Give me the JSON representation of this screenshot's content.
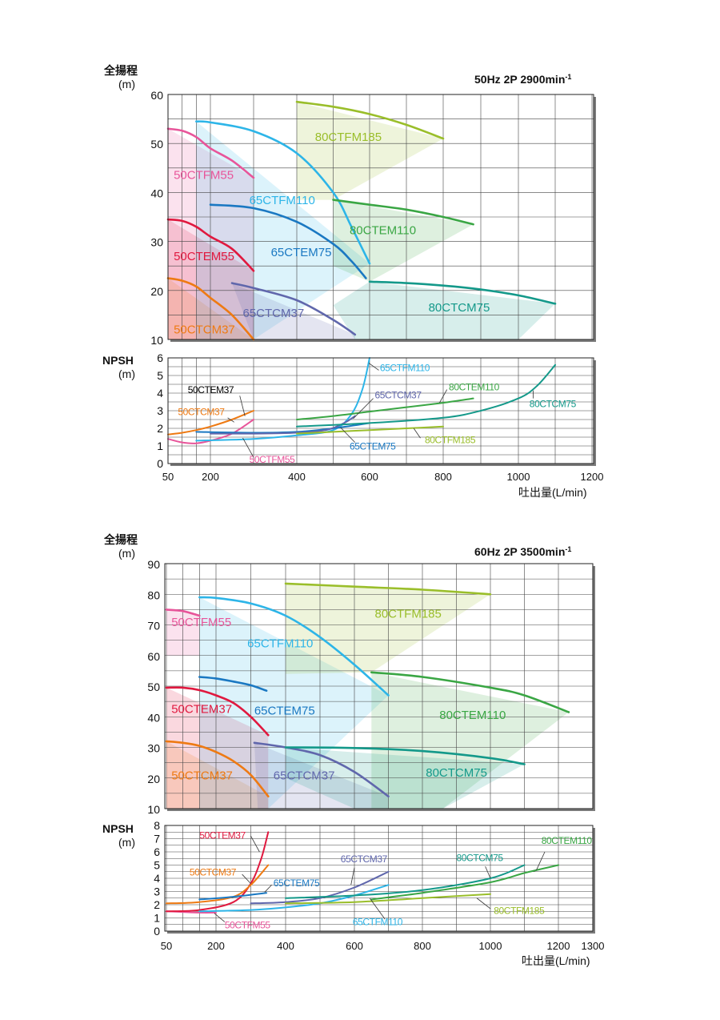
{
  "chart_data": [
    {
      "type": "line",
      "title": "50Hz 2P 2900min-1",
      "title_main": "50Hz 2P 2900min",
      "title_sup": "-1",
      "ylabel": "全揚程",
      "yunit": "(m)",
      "xlabel": "吐出量(L/min)",
      "xlim": [
        50,
        1200
      ],
      "x_ticks": [
        50,
        200,
        400,
        600,
        800,
        1000,
        1200
      ],
      "ylim": [
        10,
        60
      ],
      "y_ticks": [
        10,
        20,
        30,
        40,
        50,
        60
      ],
      "colors": {
        "50CTFM55": "#e8559a",
        "50CTEM55": "#e0193f",
        "50CTCM37": "#ee7a13",
        "65CTFM110": "#2db5e8",
        "65CTEM75": "#1a78c2",
        "65CTCM37": "#6067ac",
        "80CTFM185": "#9abe2a",
        "80CTEM110": "#3aa644",
        "80CTCM75": "#14998a"
      },
      "series": [
        {
          "name": "50CTFM55",
          "label": "50CTFM55",
          "x": [
            50,
            100,
            150,
            200,
            250,
            300
          ],
          "y": [
            53,
            52.6,
            51.3,
            49,
            46.5,
            43
          ]
        },
        {
          "name": "50CTEM55",
          "label": "50CTEM55",
          "x": [
            50,
            100,
            150,
            200,
            250,
            300
          ],
          "y": [
            34.5,
            34.2,
            33,
            31,
            28.5,
            24
          ]
        },
        {
          "name": "50CTCM37",
          "label": "50CTCM37",
          "x": [
            50,
            100,
            150,
            200,
            250,
            300
          ],
          "y": [
            22.5,
            22,
            20.8,
            18.5,
            15,
            10
          ]
        },
        {
          "name": "65CTFM110",
          "label": "65CTFM110",
          "x": [
            150,
            200,
            300,
            400,
            500,
            550,
            600
          ],
          "y": [
            54.5,
            54.3,
            52.5,
            48,
            40,
            33,
            25.5
          ]
        },
        {
          "name": "65CTEM75",
          "label": "65CTEM75",
          "x": [
            200,
            300,
            400,
            500,
            550,
            590
          ],
          "y": [
            37.5,
            36.8,
            34,
            29.5,
            26,
            22.5
          ]
        },
        {
          "name": "65CTCM37",
          "label": "65CTCM37",
          "x": [
            250,
            300,
            400,
            500,
            560
          ],
          "y": [
            21.5,
            20.5,
            18,
            14,
            11
          ]
        },
        {
          "name": "80CTFM185",
          "label": "80CTFM185",
          "x": [
            400,
            500,
            600,
            700,
            800
          ],
          "y": [
            58.5,
            57.5,
            56,
            53.8,
            51
          ]
        },
        {
          "name": "80CTEM110",
          "label": "80CTEM110",
          "x": [
            500,
            600,
            700,
            800,
            880
          ],
          "y": [
            38.5,
            37.5,
            36.5,
            35,
            33.5
          ]
        },
        {
          "name": "80CTCM75",
          "label": "80CTCM75",
          "x": [
            600,
            700,
            800,
            900,
            1000,
            1100
          ],
          "y": [
            21.8,
            21.5,
            21,
            20.2,
            19,
            17.3
          ]
        }
      ],
      "npsh": {
        "ylabel": "NPSH",
        "yunit": "(m)",
        "ylim": [
          0,
          6
        ],
        "y_ticks": [
          0,
          1,
          2,
          3,
          4,
          5,
          6
        ],
        "series": [
          {
            "name": "50CTFM55",
            "label": "50CTFM55",
            "x": [
              50,
              100,
              150,
              200,
              250,
              300
            ],
            "y": [
              1.4,
              1.2,
              1.15,
              1.3,
              1.7,
              2.5
            ]
          },
          {
            "name": "50CTEM37",
            "label": "50CTEM37",
            "x": [
              50,
              100,
              150,
              200,
              250,
              300
            ],
            "y": [
              1.5,
              1.3,
              1.25,
              1.5,
              2.2,
              3.5
            ]
          },
          {
            "name": "50CTCM37",
            "label": "50CTCM37",
            "x": [
              50,
              100,
              150,
              200,
              250,
              300
            ],
            "y": [
              1.65,
              1.75,
              1.9,
              2.1,
              2.5,
              3
            ]
          },
          {
            "name": "65CTFM110",
            "label": "65CTFM110",
            "x": [
              150,
              300,
              400,
              500,
              550,
              580,
              600
            ],
            "y": [
              1.3,
              1.4,
              1.6,
              1.9,
              2.8,
              4.2,
              6
            ]
          },
          {
            "name": "65CTEM75",
            "label": "65CTEM75",
            "x": [
              150,
              300,
              400,
              500,
              600
            ],
            "y": [
              1.8,
              1.75,
              1.8,
              2,
              2.3
            ]
          },
          {
            "name": "65CTCM37",
            "label": "65CTCM37",
            "x": [
              200,
              300,
              400,
              480,
              530,
              560
            ],
            "y": [
              1.7,
              1.7,
              1.75,
              1.9,
              2.3,
              2.7
            ]
          },
          {
            "name": "80CTFM185",
            "label": "80CTFM185",
            "x": [
              400,
              500,
              600,
              700,
              800
            ],
            "y": [
              1.7,
              1.8,
              1.9,
              2,
              2.1
            ]
          },
          {
            "name": "80CTEM110",
            "label": "80CTEM110",
            "x": [
              400,
              500,
              600,
              700,
              800,
              880
            ],
            "y": [
              2.5,
              2.7,
              2.95,
              3.2,
              3.45,
              3.7
            ]
          },
          {
            "name": "80CTCM75",
            "label": "80CTCM75",
            "x": [
              400,
              600,
              800,
              900,
              1000,
              1050,
              1100
            ],
            "y": [
              2.1,
              2.3,
              2.6,
              3,
              3.7,
              4.4,
              5.6
            ]
          }
        ]
      }
    },
    {
      "type": "line",
      "title": "60Hz 2P 3500min-1",
      "title_main": "60Hz 2P 3500min",
      "title_sup": "-1",
      "ylabel": "全揚程",
      "yunit": "(m)",
      "xlabel": "吐出量(L/min)",
      "xlim": [
        50,
        1300
      ],
      "x_ticks": [
        50,
        200,
        400,
        600,
        800,
        1000,
        1200,
        1300
      ],
      "ylim": [
        10,
        90
      ],
      "y_ticks": [
        10,
        20,
        30,
        40,
        50,
        60,
        70,
        80,
        90
      ],
      "colors": {
        "50CTFM55": "#e8559a",
        "50CTEM37": "#e0193f",
        "50CTCM37": "#ee7a13",
        "65CTFM110": "#2db5e8",
        "65CTEM75": "#1a78c2",
        "65CTCM37": "#6067ac",
        "80CTFM185": "#9abe2a",
        "80CTEM110": "#3aa644",
        "80CTCM75": "#14998a"
      },
      "series": [
        {
          "name": "50CTFM55",
          "label": "50CTFM55",
          "x": [
            50,
            100,
            150
          ],
          "y": [
            75,
            74.5,
            73
          ]
        },
        {
          "name": "50CTEM37",
          "label": "50CTEM37",
          "x": [
            50,
            100,
            150,
            200,
            250,
            300,
            350
          ],
          "y": [
            49.5,
            49.5,
            48.7,
            47,
            44.5,
            40,
            34
          ]
        },
        {
          "name": "50CTCM37",
          "label": "50CTCM37",
          "x": [
            50,
            100,
            150,
            200,
            250,
            300,
            350
          ],
          "y": [
            32,
            31.5,
            30.5,
            28.5,
            25.5,
            21,
            14
          ]
        },
        {
          "name": "65CTFM110",
          "label": "65CTFM110",
          "x": [
            150,
            200,
            300,
            400,
            500,
            600,
            700
          ],
          "y": [
            79,
            78.8,
            77,
            73,
            66,
            57,
            47
          ]
        },
        {
          "name": "65CTEM75",
          "label": "65CTEM75",
          "x": [
            150,
            200,
            250,
            300,
            345
          ],
          "y": [
            53,
            52.5,
            51.5,
            50.3,
            48.5
          ]
        },
        {
          "name": "65CTCM37",
          "label": "65CTCM37",
          "x": [
            310,
            400,
            500,
            600,
            700
          ],
          "y": [
            31.5,
            30,
            27.5,
            22,
            14
          ]
        },
        {
          "name": "80CTFM185",
          "label": "80CTFM185",
          "x": [
            400,
            600,
            800,
            1000
          ],
          "y": [
            83.5,
            82.5,
            81.5,
            80
          ]
        },
        {
          "name": "80CTEM110",
          "label": "80CTEM110",
          "x": [
            650,
            800,
            1000,
            1100,
            1230
          ],
          "y": [
            54.5,
            53,
            49.5,
            47,
            41.5
          ]
        },
        {
          "name": "80CTCM75",
          "label": "80CTCM75",
          "x": [
            400,
            600,
            800,
            1000,
            1100
          ],
          "y": [
            30,
            29.8,
            28.8,
            26.5,
            24.5
          ]
        }
      ],
      "npsh": {
        "ylabel": "NPSH",
        "yunit": "(m)",
        "ylim": [
          0,
          8
        ],
        "y_ticks": [
          0,
          1,
          2,
          3,
          4,
          5,
          6,
          7,
          8
        ],
        "series": [
          {
            "name": "50CTFM55",
            "label": "50CTFM55",
            "x": [
              50,
              100,
              150,
              200
            ],
            "y": [
              1.5,
              1.45,
              1.4,
              1.4
            ]
          },
          {
            "name": "50CTEM37",
            "label": "50CTEM37",
            "x": [
              50,
              150,
              250,
              300,
              330,
              350
            ],
            "y": [
              1.5,
              1.6,
              2.2,
              3.6,
              5.5,
              7.5
            ]
          },
          {
            "name": "50CTCM37",
            "label": "50CTCM37",
            "x": [
              50,
              150,
              250,
              300,
              350
            ],
            "y": [
              2.1,
              2.2,
              2.6,
              3.5,
              5
            ]
          },
          {
            "name": "65CTFM110",
            "label": "65CTFM110",
            "x": [
              150,
              300,
              400,
              500,
              600,
              700
            ],
            "y": [
              1.5,
              1.6,
              1.8,
              2.1,
              2.7,
              3.5
            ]
          },
          {
            "name": "65CTEM75",
            "label": "65CTEM75",
            "x": [
              150,
              250,
              345
            ],
            "y": [
              2.4,
              2.6,
              2.9
            ]
          },
          {
            "name": "65CTCM37",
            "label": "65CTCM37",
            "x": [
              300,
              400,
              500,
              600,
              700
            ],
            "y": [
              2.1,
              2.2,
              2.5,
              3.3,
              4.5
            ]
          },
          {
            "name": "80CTFM185",
            "label": "80CTFM185",
            "x": [
              400,
              600,
              800,
              1000
            ],
            "y": [
              2.1,
              2.2,
              2.5,
              2.8
            ]
          },
          {
            "name": "80CTEM110",
            "label": "80CTEM110",
            "x": [
              650,
              800,
              1000,
              1100,
              1200
            ],
            "y": [
              2.4,
              2.9,
              3.7,
              4.4,
              5
            ]
          },
          {
            "name": "80CTCM75",
            "label": "80CTCM75",
            "x": [
              400,
              600,
              800,
              1000,
              1100
            ],
            "y": [
              2.5,
              2.7,
              3.1,
              4,
              5
            ]
          }
        ]
      }
    }
  ]
}
